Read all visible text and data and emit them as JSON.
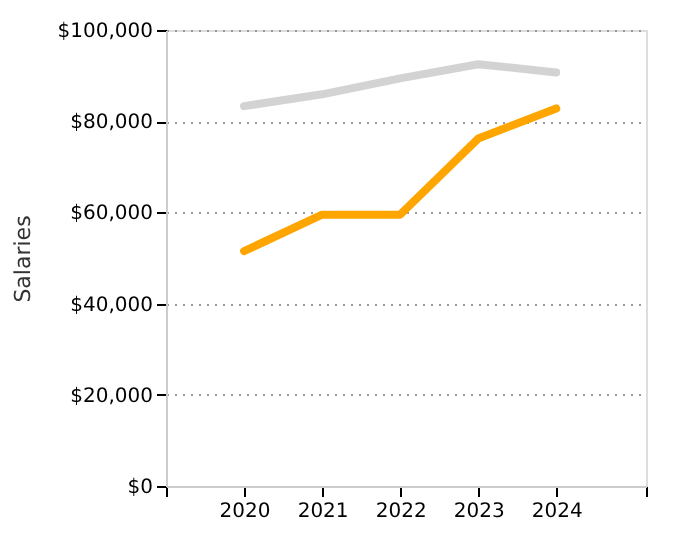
{
  "chart_data": {
    "type": "line",
    "ylabel": "Salaries",
    "x": [
      2020,
      2021,
      2022,
      2023,
      2024
    ],
    "series": [
      {
        "color": "#d3d3d3",
        "values": [
          83300,
          85900,
          89400,
          92500,
          90700
        ]
      },
      {
        "color": "#ffa500",
        "values": [
          51500,
          59500,
          59500,
          76200,
          82800
        ]
      }
    ],
    "xlim": [
      2019,
      2025.15
    ],
    "xticks": [
      {
        "value": 2019,
        "label": null
      },
      2020,
      2021,
      2022,
      2023,
      2024,
      {
        "value": 2025.15,
        "label": null
      }
    ],
    "ylim": [
      0,
      100000
    ],
    "yticks": [
      {
        "value": 0,
        "label": "$0"
      },
      {
        "value": 20000,
        "label": "$20,000"
      },
      {
        "value": 40000,
        "label": "$40,000"
      },
      {
        "value": 60000,
        "label": "$60,000"
      },
      {
        "value": 80000,
        "label": "$80,000"
      },
      {
        "value": 100000,
        "label": "$100,000"
      }
    ],
    "grid": "y",
    "legend": false,
    "marker": "none",
    "line_style": "solid"
  }
}
